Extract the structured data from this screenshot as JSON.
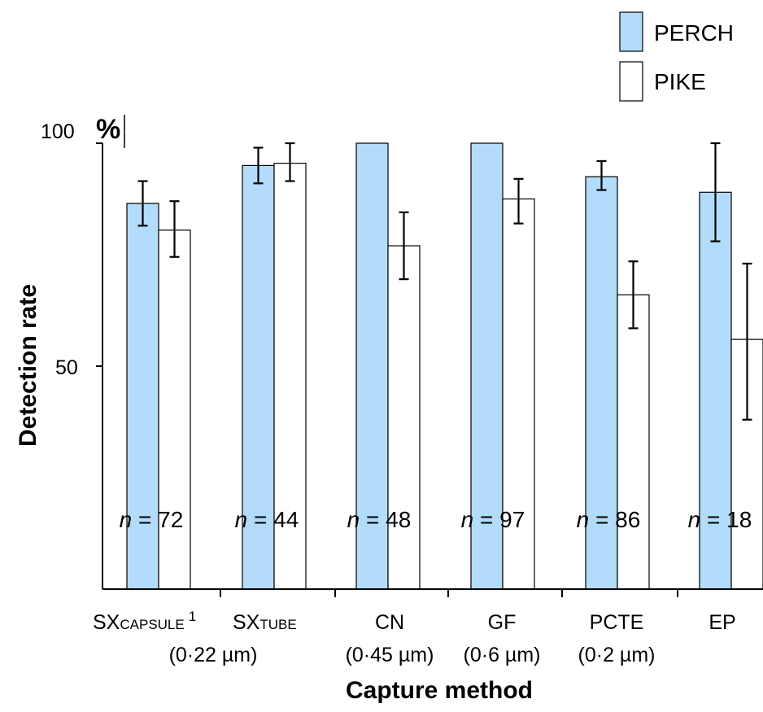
{
  "chart_data": {
    "type": "bar",
    "xlabel": "Capture method",
    "ylabel": "Detection rate",
    "ylim": [
      0,
      100
    ],
    "yticks": [
      {
        "value": 100,
        "label": "100"
      },
      {
        "value": 50,
        "label": "50"
      }
    ],
    "y_unit_label": "%",
    "legend_placement": "top-right",
    "groups": [
      {
        "sub": "SX",
        "sub_small": "CAPSULE",
        "sup": "1"
      },
      {
        "sub": "SX",
        "sub_small": "TUBE",
        "sup": ""
      },
      {
        "sub": "CN",
        "sub_small": "",
        "sup": ""
      },
      {
        "sub": "GF",
        "sub_small": "",
        "sup": ""
      },
      {
        "sub": "PCTE",
        "sub_small": "",
        "sup": ""
      },
      {
        "sub": "EP",
        "sub_small": "",
        "sup": ""
      }
    ],
    "group_pore_labels": [
      {
        "text": "(0·22 µm)",
        "span": [
          0,
          1
        ]
      },
      {
        "text": "(0·45 µm)",
        "span": [
          2,
          2
        ]
      },
      {
        "text": "(0·6 µm)",
        "span": [
          3,
          3
        ]
      },
      {
        "text": "(0·2 µm)",
        "span": [
          4,
          4
        ]
      }
    ],
    "series": [
      {
        "name": "PERCH",
        "color": "#b3dcfa",
        "values": [
          86.5,
          95,
          100,
          100,
          92.5,
          89
        ],
        "error_low": [
          81.5,
          91,
          null,
          null,
          89.5,
          78
        ],
        "error_high": [
          91.5,
          99,
          null,
          null,
          96,
          100
        ]
      },
      {
        "name": "PIKE",
        "color": "#ffffff",
        "values": [
          80.5,
          95.5,
          77,
          87.5,
          66,
          56
        ],
        "error_low": [
          74.5,
          91.5,
          69.5,
          82,
          58.5,
          38
        ],
        "error_high": [
          87,
          100,
          84.5,
          92,
          73.5,
          73
        ]
      }
    ],
    "n_values": [
      "72",
      "44",
      "48",
      "97",
      "86",
      "18"
    ],
    "n_prefix": "n",
    "n_equals": " = "
  },
  "colors": {
    "perch": "#b3dcfa",
    "pike": "#ffffff",
    "axis": "#000000"
  }
}
